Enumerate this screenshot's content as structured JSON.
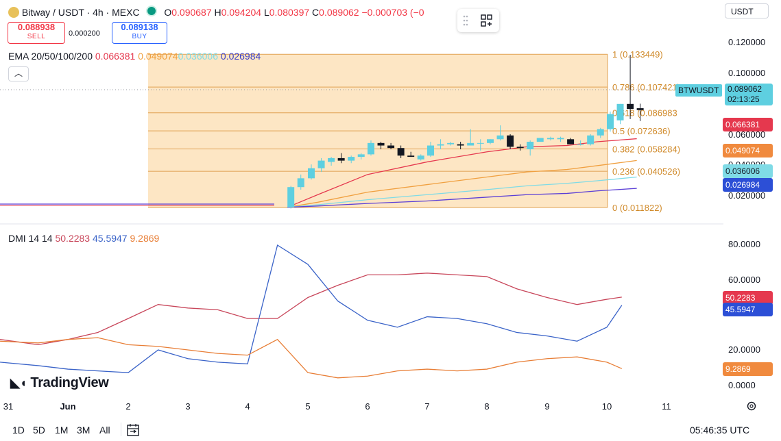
{
  "header": {
    "symbol_title": "Bitway / USDT · 4h · MEXC",
    "ohlc": [
      {
        "label": "O",
        "value": "0.090687"
      },
      {
        "label": "H",
        "value": "0.094204"
      },
      {
        "label": "L",
        "value": "0.080397"
      },
      {
        "label": "C",
        "value": "0.089062"
      }
    ],
    "change": "−0.000703 (−0",
    "status_dot_color": "#089981"
  },
  "trade": {
    "sell_price": "0.088938",
    "sell_label": "SELL",
    "spread": "0.000200",
    "buy_price": "0.089138",
    "buy_label": "BUY"
  },
  "ema": {
    "label": "EMA 20/50/100/200",
    "values": [
      "0.066381",
      "0.049074",
      "0.036006",
      "0.026984"
    ],
    "colors": [
      "#e5384e",
      "#f0a040",
      "#7fdbe6",
      "#5b3fd6"
    ]
  },
  "dmi": {
    "label": "DMI 14 14",
    "values": [
      "50.2283",
      "45.5947",
      "9.2869"
    ],
    "colors": [
      "#c8465a",
      "#3a63c8",
      "#e87e36"
    ]
  },
  "currency_select": "USDT",
  "collapse_icon": "chevron-up-icon",
  "tool_icons": [
    "drag-handle-icon",
    "object-tree-icon"
  ],
  "price_axis": {
    "ticks": [
      "0.120000",
      "0.100000",
      "0.060000",
      "0.040000",
      "0.020000"
    ]
  },
  "dmi_axis": {
    "ticks": [
      "80.0000",
      "60.0000",
      "20.0000",
      "0.0000"
    ]
  },
  "time_axis": {
    "labels": [
      "31",
      "Jun",
      "2",
      "3",
      "4",
      "5",
      "6",
      "7",
      "8",
      "9",
      "10",
      "11"
    ]
  },
  "price_tags": {
    "symbol": "BTWUSDT",
    "last": "0.089062",
    "countdown": "02:13:25",
    "ema20": "0.066381",
    "ema50": "0.049074",
    "ema100": "0.036006",
    "ema200": "0.026984",
    "plus_di": "50.2283",
    "minus_di": "45.5947",
    "adx": "9.2869"
  },
  "fib_levels": [
    {
      "ratio": "1",
      "price": "0.133449",
      "label": "1 (0.133449)"
    },
    {
      "ratio": "0.786",
      "price": "0.107421",
      "label": "0.786 (0.107421)"
    },
    {
      "ratio": "0.618",
      "price": "0.086983",
      "label": "0.618 (0.086983"
    },
    {
      "ratio": "0.5",
      "price": "0.072636",
      "label": "0.5 (0.072636)"
    },
    {
      "ratio": "0.382",
      "price": "0.058284",
      "label": "0.382 (0.058284)"
    },
    {
      "ratio": "0.236",
      "price": "0.040526",
      "label": "0.236 (0.040526)"
    },
    {
      "ratio": "0",
      "price": "0.011822",
      "label": "0 (0.011822)"
    }
  ],
  "timeframes": [
    "1D",
    "5D",
    "1M",
    "3M",
    "All"
  ],
  "calendar_icon": "calendar-range-icon",
  "settings_icon": "gear-icon",
  "clock": "05:46:35 UTC",
  "logo_text": "TradingView",
  "colors": {
    "up": "#5ecfe0",
    "down": "#131722",
    "fib_fill": "#fde6c4",
    "fib_line": "#f0a040"
  },
  "chart_data": [
    {
      "type": "candlestick",
      "title": "Bitway / USDT · 4h · MEXC",
      "ylim": [
        0.011,
        0.134
      ],
      "fib_retracement": {
        "high": 0.133449,
        "low": 0.011822
      },
      "candles": [
        {
          "t": "4 16:00",
          "o": 0.012,
          "h": 0.029,
          "l": 0.011,
          "c": 0.028
        },
        {
          "t": "4 20:00",
          "o": 0.028,
          "h": 0.038,
          "l": 0.026,
          "c": 0.035
        },
        {
          "t": "5 00:00",
          "o": 0.035,
          "h": 0.046,
          "l": 0.034,
          "c": 0.043
        },
        {
          "t": "5 04:00",
          "o": 0.043,
          "h": 0.051,
          "l": 0.04,
          "c": 0.049
        },
        {
          "t": "5 08:00",
          "o": 0.048,
          "h": 0.052,
          "l": 0.045,
          "c": 0.051
        },
        {
          "t": "5 12:00",
          "o": 0.051,
          "h": 0.055,
          "l": 0.047,
          "c": 0.049
        },
        {
          "t": "5 16:00",
          "o": 0.049,
          "h": 0.053,
          "l": 0.047,
          "c": 0.052
        },
        {
          "t": "5 20:00",
          "o": 0.052,
          "h": 0.055,
          "l": 0.05,
          "c": 0.054
        },
        {
          "t": "6 00:00",
          "o": 0.054,
          "h": 0.065,
          "l": 0.053,
          "c": 0.063
        },
        {
          "t": "6 04:00",
          "o": 0.063,
          "h": 0.064,
          "l": 0.058,
          "c": 0.061
        },
        {
          "t": "6 08:00",
          "o": 0.061,
          "h": 0.063,
          "l": 0.058,
          "c": 0.059
        },
        {
          "t": "6 12:00",
          "o": 0.059,
          "h": 0.061,
          "l": 0.051,
          "c": 0.053
        },
        {
          "t": "6 16:00",
          "o": 0.053,
          "h": 0.056,
          "l": 0.052,
          "c": 0.052
        },
        {
          "t": "6 20:00",
          "o": 0.05,
          "h": 0.054,
          "l": 0.049,
          "c": 0.053
        },
        {
          "t": "7 00:00",
          "o": 0.053,
          "h": 0.064,
          "l": 0.052,
          "c": 0.061
        },
        {
          "t": "7 04:00",
          "o": 0.061,
          "h": 0.066,
          "l": 0.058,
          "c": 0.062
        },
        {
          "t": "7 08:00",
          "o": 0.062,
          "h": 0.064,
          "l": 0.061,
          "c": 0.063
        },
        {
          "t": "7 12:00",
          "o": 0.062,
          "h": 0.064,
          "l": 0.058,
          "c": 0.061
        },
        {
          "t": "7 16:00",
          "o": 0.061,
          "h": 0.074,
          "l": 0.061,
          "c": 0.063
        },
        {
          "t": "7 20:00",
          "o": 0.063,
          "h": 0.066,
          "l": 0.057,
          "c": 0.063
        },
        {
          "t": "8 00:00",
          "o": 0.063,
          "h": 0.066,
          "l": 0.062,
          "c": 0.066
        },
        {
          "t": "8 04:00",
          "o": 0.066,
          "h": 0.077,
          "l": 0.065,
          "c": 0.069
        },
        {
          "t": "8 08:00",
          "o": 0.069,
          "h": 0.07,
          "l": 0.058,
          "c": 0.06
        },
        {
          "t": "8 12:00",
          "o": 0.06,
          "h": 0.062,
          "l": 0.057,
          "c": 0.059
        },
        {
          "t": "8 16:00",
          "o": 0.058,
          "h": 0.065,
          "l": 0.053,
          "c": 0.064
        },
        {
          "t": "8 20:00",
          "o": 0.064,
          "h": 0.067,
          "l": 0.064,
          "c": 0.067
        },
        {
          "t": "9 00:00",
          "o": 0.066,
          "h": 0.068,
          "l": 0.065,
          "c": 0.067
        },
        {
          "t": "9 04:00",
          "o": 0.066,
          "h": 0.068,
          "l": 0.064,
          "c": 0.067
        },
        {
          "t": "9 08:00",
          "o": 0.066,
          "h": 0.067,
          "l": 0.062,
          "c": 0.062
        },
        {
          "t": "9 12:00",
          "o": 0.062,
          "h": 0.065,
          "l": 0.061,
          "c": 0.062
        },
        {
          "t": "9 16:00",
          "o": 0.062,
          "h": 0.07,
          "l": 0.061,
          "c": 0.069
        },
        {
          "t": "9 20:00",
          "o": 0.069,
          "h": 0.075,
          "l": 0.067,
          "c": 0.074
        },
        {
          "t": "10 00:00",
          "o": 0.074,
          "h": 0.088,
          "l": 0.072,
          "c": 0.086
        },
        {
          "t": "10 04:00",
          "o": 0.081,
          "h": 0.094,
          "l": 0.078,
          "c": 0.094
        },
        {
          "t": "10 08:00",
          "o": 0.094,
          "h": 0.133,
          "l": 0.082,
          "c": 0.09
        },
        {
          "t": "10 12:00",
          "o": 0.0906,
          "h": 0.0942,
          "l": 0.0804,
          "c": 0.0891
        }
      ],
      "series": [
        {
          "name": "EMA 20",
          "color": "#e5384e",
          "x": [
            "4 16:00",
            "5 04:00",
            "6 00:00",
            "7 00:00",
            "8 00:00",
            "8 16:00",
            "9 08:00",
            "9 20:00",
            "10 12:00"
          ],
          "values": [
            0.012,
            0.022,
            0.038,
            0.048,
            0.056,
            0.06,
            0.061,
            0.064,
            0.0664
          ]
        },
        {
          "name": "EMA 50",
          "color": "#f0a040",
          "x": [
            "4 16:00",
            "5 04:00",
            "6 00:00",
            "7 00:00",
            "8 00:00",
            "8 16:00",
            "9 08:00",
            "9 20:00",
            "10 12:00"
          ],
          "values": [
            0.012,
            0.016,
            0.024,
            0.03,
            0.036,
            0.04,
            0.042,
            0.045,
            0.0491
          ]
        },
        {
          "name": "EMA 100",
          "color": "#7fdbe6",
          "x": [
            "4 16:00",
            "5 04:00",
            "6 00:00",
            "7 00:00",
            "8 00:00",
            "8 16:00",
            "9 08:00",
            "9 20:00",
            "10 12:00"
          ],
          "values": [
            0.012,
            0.014,
            0.018,
            0.022,
            0.026,
            0.029,
            0.031,
            0.033,
            0.036
          ]
        },
        {
          "name": "EMA 200",
          "color": "#5b3fd6",
          "x": [
            "4 16:00",
            "5 04:00",
            "6 00:00",
            "7 00:00",
            "8 00:00",
            "8 16:00",
            "9 08:00",
            "9 20:00",
            "10 12:00"
          ],
          "values": [
            0.012,
            0.013,
            0.015,
            0.017,
            0.02,
            0.022,
            0.023,
            0.025,
            0.027
          ]
        }
      ]
    },
    {
      "type": "line",
      "title": "DMI 14 14",
      "ylim": [
        0,
        85
      ],
      "x": [
        "31",
        "31 12",
        "1",
        "1 12",
        "2",
        "2 12",
        "3",
        "3 12",
        "4",
        "4 12",
        "5",
        "5 12",
        "6",
        "6 12",
        "7",
        "7 12",
        "8",
        "8 12",
        "9",
        "9 12",
        "10",
        "10 06"
      ],
      "series": [
        {
          "name": "+DI",
          "color": "#c8465a",
          "values": [
            26,
            23,
            26,
            30,
            38,
            46,
            44,
            43,
            38,
            38,
            50,
            57,
            63,
            63,
            64,
            63,
            62,
            55,
            50,
            46,
            49,
            50.2283
          ]
        },
        {
          "name": "−DI",
          "color": "#3a63c8",
          "values": [
            13,
            11,
            9,
            8,
            7,
            20,
            15,
            13,
            12,
            80,
            69,
            48,
            37,
            33,
            39,
            38,
            35,
            30,
            28,
            25,
            33,
            45.5947
          ]
        },
        {
          "name": "ADX",
          "color": "#e87e36",
          "values": [
            25,
            24,
            26,
            27,
            23,
            22,
            20,
            18,
            17,
            26,
            7,
            4,
            5,
            8,
            9,
            8,
            9,
            13,
            15,
            16,
            13,
            9.2869
          ]
        }
      ]
    }
  ]
}
